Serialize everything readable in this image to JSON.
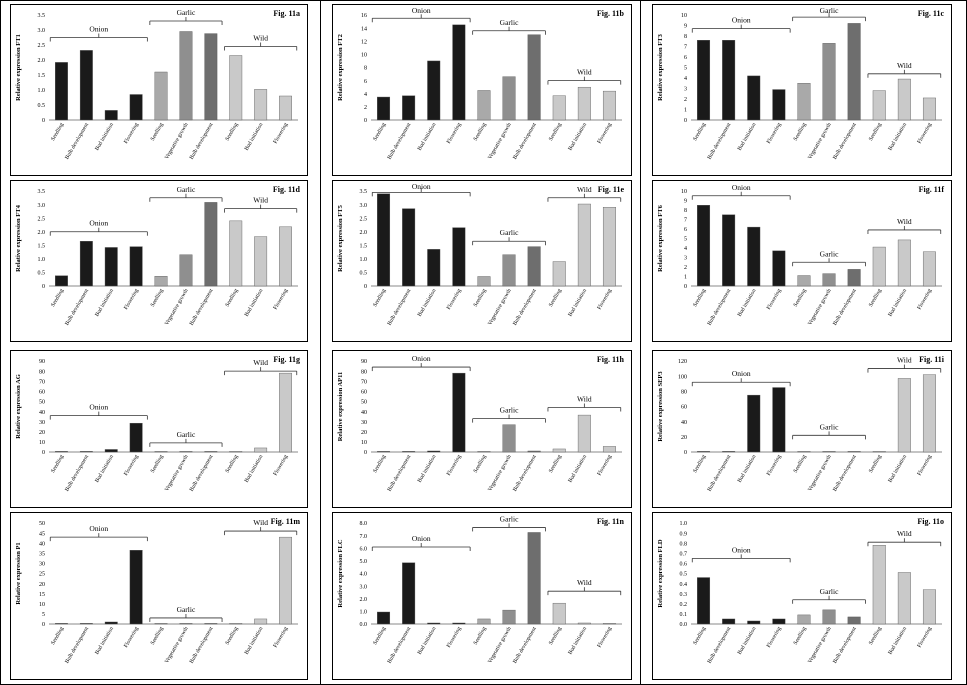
{
  "colors": {
    "onion": "#1a1a1a",
    "garlic_seedling": "#a9a9a9",
    "garlic_vegetative": "#8f8f8f",
    "garlic_bulb": "#6e6e6e",
    "wild": "#c9c9c9",
    "axis": "#888888",
    "bracket": "#333333"
  },
  "chart_data": [
    {
      "type": "bar",
      "label": "Fig. 11a",
      "ylabel": "Relative expression FT1",
      "ylim": [
        0,
        3.5
      ],
      "yticks": [
        "0",
        "0.5",
        "1.0",
        "1.5",
        "2.0",
        "2.5",
        "3.0",
        "3.5"
      ],
      "categories": [
        "Seedling",
        "Bulb development",
        "Bud initiation",
        "Flowering",
        "Seedling",
        "Vegetative growth",
        "Bulb development",
        "Seedling",
        "Bud initiation",
        "Flowering"
      ],
      "values": [
        1.92,
        2.32,
        0.32,
        0.85,
        1.6,
        2.95,
        2.88,
        2.15,
        1.02,
        0.8
      ],
      "groups": [
        {
          "name": "Onion",
          "y": 2.75
        },
        {
          "name": "Garlic",
          "y": 3.3
        },
        {
          "name": "Wild",
          "y": 2.45
        }
      ]
    },
    {
      "type": "bar",
      "label": "Fig. 11b",
      "ylabel": "Relative expression FT2",
      "ylim": [
        0,
        16
      ],
      "yticks": [
        "0",
        "2",
        "4",
        "6",
        "8",
        "10",
        "12",
        "14",
        "16"
      ],
      "categories": [
        "Seedling",
        "Bulb development",
        "Bud initiation",
        "Flowering",
        "Seedling",
        "Vegetative growth",
        "Bulb development",
        "Seedling",
        "Bud initiation",
        "Flowering"
      ],
      "values": [
        3.5,
        3.7,
        9.0,
        14.5,
        4.5,
        6.6,
        13.0,
        3.7,
        5.0,
        4.4
      ],
      "groups": [
        {
          "name": "Onion",
          "y": 15.5
        },
        {
          "name": "Garlic",
          "y": 13.6
        },
        {
          "name": "Wild",
          "y": 6.0
        }
      ]
    },
    {
      "type": "bar",
      "label": "Fig. 11c",
      "ylabel": "Relative expression FT3",
      "ylim": [
        0,
        10
      ],
      "yticks": [
        "0",
        "1",
        "2",
        "3",
        "4",
        "5",
        "6",
        "7",
        "8",
        "9",
        "10"
      ],
      "categories": [
        "Seedling",
        "Bulb development",
        "Bud initiation",
        "Flowering",
        "Seedling",
        "Vegetative growth",
        "Bulb development",
        "Seedling",
        "Bud initiation",
        "Flowering"
      ],
      "values": [
        7.6,
        7.6,
        4.2,
        2.9,
        3.5,
        7.3,
        9.2,
        2.8,
        3.9,
        2.1
      ],
      "groups": [
        {
          "name": "Onion",
          "y": 8.7
        },
        {
          "name": "Garlic",
          "y": 9.8
        },
        {
          "name": "Wild",
          "y": 4.4
        }
      ]
    },
    {
      "type": "bar",
      "label": "Fig. 11d",
      "ylabel": "Relative expression FT4",
      "ylim": [
        0,
        3.5
      ],
      "yticks": [
        "0",
        "0.5",
        "1.0",
        "1.5",
        "2.0",
        "2.5",
        "3.0",
        "3.5"
      ],
      "categories": [
        "Seedling",
        "Bulb development",
        "Bud initiation",
        "Flowering",
        "Seedling",
        "Vegetative growth",
        "Bulb development",
        "Seedling",
        "Bud initiation",
        "Flowering"
      ],
      "values": [
        0.38,
        1.65,
        1.42,
        1.45,
        0.36,
        1.15,
        3.08,
        2.4,
        1.82,
        2.18
      ],
      "groups": [
        {
          "name": "Onion",
          "y": 2.0
        },
        {
          "name": "Garlic",
          "y": 3.25
        },
        {
          "name": "Wild",
          "y": 2.85
        }
      ]
    },
    {
      "type": "bar",
      "label": "Fig. 11e",
      "ylabel": "Relative expression FT5",
      "ylim": [
        0,
        3.5
      ],
      "yticks": [
        "0",
        "0.5",
        "1.0",
        "1.5",
        "2.0",
        "2.5",
        "3.0",
        "3.5"
      ],
      "categories": [
        "Seedling",
        "Bulb development",
        "Bud initiation",
        "Flowering",
        "Seedling",
        "Vegetative growth",
        "Bulb development",
        "Seedling",
        "Bud initiation",
        "Flowering"
      ],
      "values": [
        3.4,
        2.85,
        1.35,
        2.15,
        0.35,
        1.15,
        1.45,
        0.9,
        3.02,
        2.9
      ],
      "groups": [
        {
          "name": "Onion",
          "y": 3.45
        },
        {
          "name": "Garlic",
          "y": 1.65
        },
        {
          "name": "Wild",
          "y": 3.25
        }
      ]
    },
    {
      "type": "bar",
      "label": "Fig. 11f",
      "ylabel": "Relative expression FT6",
      "ylim": [
        0,
        10
      ],
      "yticks": [
        "0",
        "1",
        "2",
        "3",
        "4",
        "5",
        "6",
        "7",
        "8",
        "9",
        "10"
      ],
      "categories": [
        "Seedling",
        "Bulb development",
        "Bud initiation",
        "Flowering",
        "Seedling",
        "Vegetative growth",
        "Bulb development",
        "Seedling",
        "Bud initiation",
        "Flowering"
      ],
      "values": [
        8.5,
        7.5,
        6.2,
        3.7,
        1.1,
        1.3,
        1.75,
        4.1,
        4.85,
        3.6
      ],
      "groups": [
        {
          "name": "Onion",
          "y": 9.5
        },
        {
          "name": "Garlic",
          "y": 2.5
        },
        {
          "name": "Wild",
          "y": 5.9
        }
      ]
    },
    {
      "type": "bar",
      "label": "Fig. 11g",
      "ylabel": "Relative expression AG",
      "ylim": [
        0,
        90
      ],
      "yticks": [
        "0",
        "10",
        "20",
        "30",
        "40",
        "50",
        "60",
        "70",
        "80",
        "90"
      ],
      "categories": [
        "Seedling",
        "Bulb development",
        "Bud initiation",
        "Flowering",
        "Seedling",
        "Vegetative growth",
        "Bulb development",
        "Seedling",
        "Bud initiation",
        "Flowering"
      ],
      "values": [
        0.3,
        0.3,
        2.5,
        28.5,
        0.3,
        0.5,
        0.5,
        0.5,
        4.0,
        78.0
      ],
      "groups": [
        {
          "name": "Onion",
          "y": 36
        },
        {
          "name": "Garlic",
          "y": 9
        },
        {
          "name": "Wild",
          "y": 80
        }
      ]
    },
    {
      "type": "bar",
      "label": "Fig. 11h",
      "ylabel": "Relative expression AP11",
      "ylim": [
        0,
        90
      ],
      "yticks": [
        "0",
        "10",
        "20",
        "30",
        "40",
        "50",
        "60",
        "70",
        "80",
        "90"
      ],
      "categories": [
        "Seedling",
        "Bulb development",
        "Bud initiation",
        "Flowering",
        "Seedling",
        "Vegetative growth",
        "Bulb development",
        "Seedling",
        "Bud initiation",
        "Flowering"
      ],
      "values": [
        0.3,
        0.3,
        1.0,
        78.0,
        0.3,
        27.0,
        1.0,
        3.0,
        36.5,
        5.5
      ],
      "groups": [
        {
          "name": "Onion",
          "y": 84
        },
        {
          "name": "Garlic",
          "y": 33
        },
        {
          "name": "Wild",
          "y": 44
        }
      ]
    },
    {
      "type": "bar",
      "label": "Fig. 11i",
      "ylabel": "Relative expression SEP3",
      "ylim": [
        0,
        120
      ],
      "yticks": [
        "0",
        "20",
        "40",
        "60",
        "80",
        "100",
        "120"
      ],
      "categories": [
        "Seedling",
        "Bulb development",
        "Bud initiation",
        "Flowering",
        "Seedling",
        "Vegetative growth",
        "Bulb development",
        "Seedling",
        "Bud initiation",
        "Flowering"
      ],
      "values": [
        0.3,
        0.3,
        75.0,
        85.0,
        0.2,
        0.2,
        0.2,
        0.3,
        97.0,
        102.0
      ],
      "groups": [
        {
          "name": "Onion",
          "y": 92
        },
        {
          "name": "Garlic",
          "y": 22
        },
        {
          "name": "Wild",
          "y": 110
        }
      ]
    },
    {
      "type": "bar",
      "label": "Fig. 11m",
      "ylabel": "Relative expression P1",
      "ylim": [
        0,
        50
      ],
      "yticks": [
        "0",
        "5",
        "10",
        "15",
        "20",
        "25",
        "30",
        "35",
        "40",
        "45",
        "50"
      ],
      "categories": [
        "Seedling",
        "Bulb development",
        "Bud initiation",
        "Flowering",
        "Seedling",
        "Vegetative growth",
        "Bulb development",
        "Seedling",
        "Bud initiation",
        "Flowering"
      ],
      "values": [
        0.2,
        0.2,
        1.0,
        36.5,
        0.2,
        0.2,
        0.2,
        0.2,
        2.5,
        43.0
      ],
      "groups": [
        {
          "name": "Onion",
          "y": 43
        },
        {
          "name": "Garlic",
          "y": 3
        },
        {
          "name": "Wild",
          "y": 46
        }
      ]
    },
    {
      "type": "bar",
      "label": "Fig. 11n",
      "ylabel": "Relative expression FLC",
      "ylim": [
        0,
        8
      ],
      "yticks": [
        "0.0",
        "1.0",
        "2.0",
        "3.0",
        "4.0",
        "5.0",
        "6.0",
        "7.0",
        "8.0"
      ],
      "categories": [
        "Seedling",
        "Bulb development",
        "Bud initiation",
        "Flowering",
        "Seedling",
        "Vegetative growth",
        "Bulb development",
        "Seedling",
        "Bud initiation",
        "Flowering"
      ],
      "values": [
        0.95,
        4.85,
        0.08,
        0.08,
        0.4,
        1.1,
        7.25,
        1.65,
        0.08,
        0.05
      ],
      "groups": [
        {
          "name": "Onion",
          "y": 6.1
        },
        {
          "name": "Garlic",
          "y": 7.65
        },
        {
          "name": "Wild",
          "y": 2.6
        }
      ]
    },
    {
      "type": "bar",
      "label": "Fig. 11o",
      "ylabel": "Relative expression FLD",
      "ylim": [
        0,
        1.0
      ],
      "yticks": [
        "0.0",
        "0.1",
        "0.2",
        "0.3",
        "0.4",
        "0.5",
        "0.6",
        "0.7",
        "0.8",
        "0.9",
        "1.0"
      ],
      "categories": [
        "Seedling",
        "Bulb development",
        "Bud initiation",
        "Flowering",
        "Seedling",
        "Vegetative growth",
        "Bulb development",
        "Seedling",
        "Bud initiation",
        "Flowering"
      ],
      "values": [
        0.46,
        0.05,
        0.03,
        0.05,
        0.09,
        0.14,
        0.07,
        0.78,
        0.51,
        0.34
      ],
      "groups": [
        {
          "name": "Onion",
          "y": 0.65
        },
        {
          "name": "Garlic",
          "y": 0.24
        },
        {
          "name": "Wild",
          "y": 0.81
        }
      ]
    }
  ]
}
